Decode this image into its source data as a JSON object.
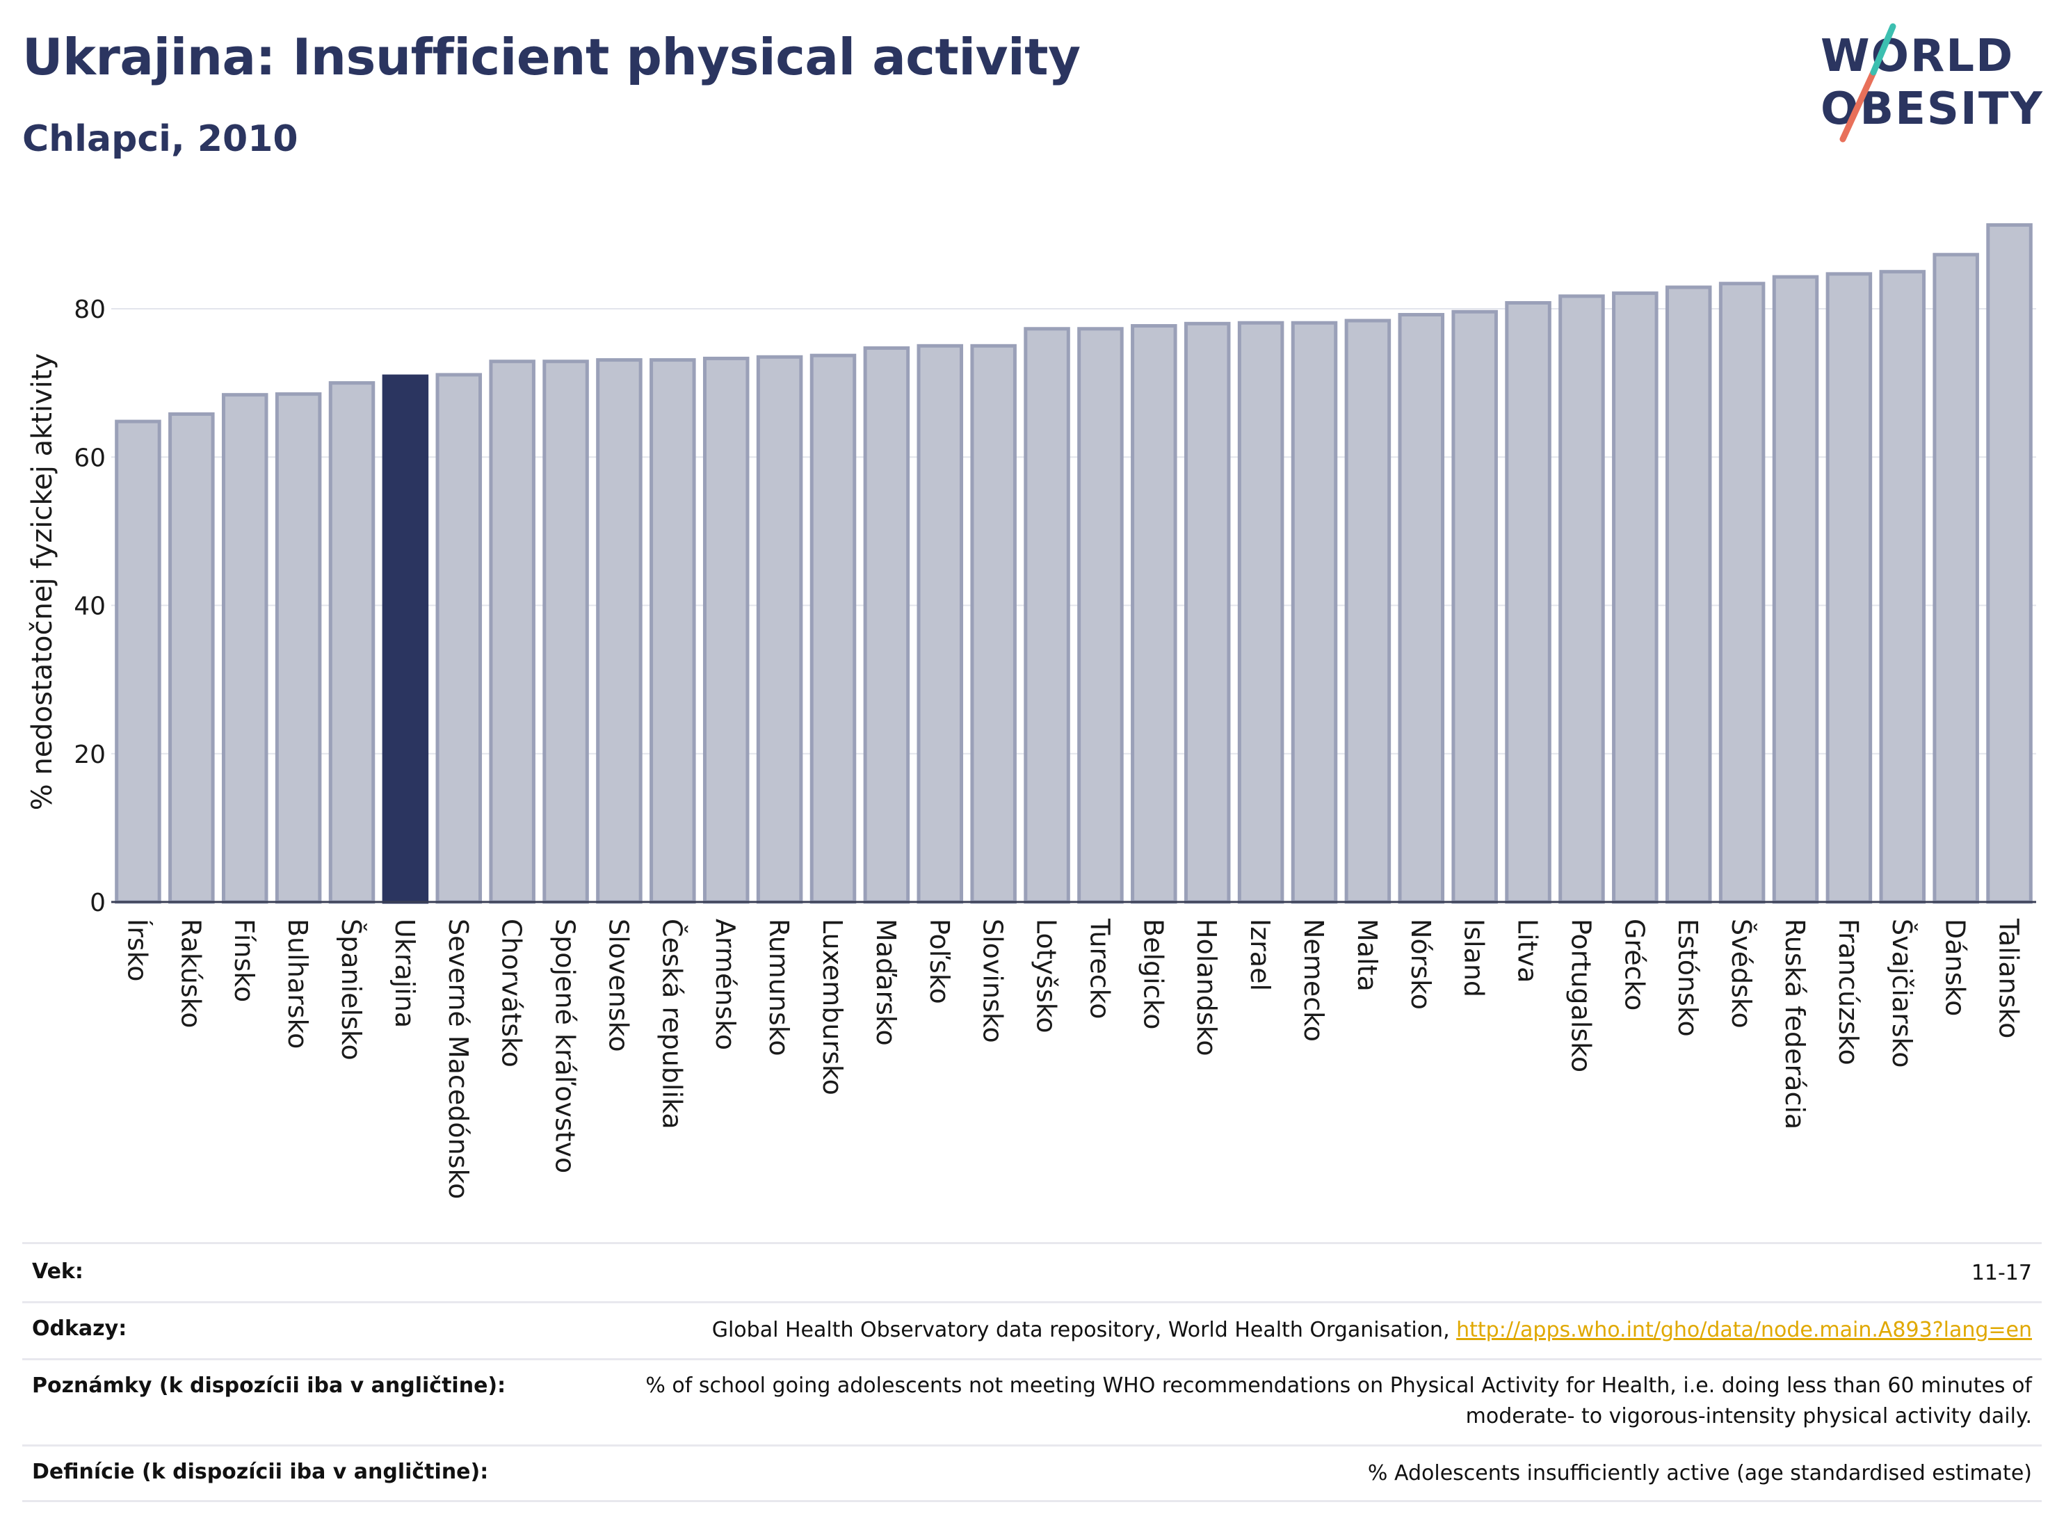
{
  "header": {
    "title": "Ukrajina: Insufficient physical activity",
    "subtitle": "Chlapci, 2010"
  },
  "logo": {
    "line1": "WORLD",
    "line2": "OBESITY"
  },
  "colors": {
    "bar": "#bfc3d0",
    "bar_edge": "#9aa0b8",
    "highlight": "#2b3560",
    "title": "#2b3560",
    "link": "#e0a800"
  },
  "chart_data": {
    "type": "bar",
    "ylabel": "% nedostatočnej fyzickej aktivity",
    "ylim": [
      0,
      92
    ],
    "yticks": [
      0,
      20,
      40,
      60,
      80
    ],
    "grid": true,
    "highlight": "Ukrajina",
    "categories": [
      "Írsko",
      "Rakúsko",
      "Fínsko",
      "Bulharsko",
      "Španielsko",
      "Ukrajina",
      "Severné Macedónsko",
      "Chorvátsko",
      "Spojené kráľovstvo",
      "Slovensko",
      "Česká republika",
      "Arménsko",
      "Rumunsko",
      "Luxembursko",
      "Maďarsko",
      "Poľsko",
      "Slovinsko",
      "Lotyšsko",
      "Turecko",
      "Belgicko",
      "Holandsko",
      "Izrael",
      "Nemecko",
      "Malta",
      "Nórsko",
      "Island",
      "Litva",
      "Portugalsko",
      "Grécko",
      "Estónsko",
      "Švédsko",
      "Ruská federácia",
      "Francúzsko",
      "Švajčiarsko",
      "Dánsko",
      "Taliansko"
    ],
    "values": [
      64.8,
      65.8,
      68.4,
      68.5,
      70.0,
      70.9,
      71.1,
      72.9,
      72.9,
      73.1,
      73.1,
      73.3,
      73.5,
      73.7,
      74.7,
      75.0,
      75.0,
      77.3,
      77.3,
      77.7,
      78.0,
      78.1,
      78.1,
      78.4,
      79.2,
      79.6,
      80.8,
      81.7,
      82.1,
      82.9,
      83.4,
      84.3,
      84.7,
      85.0,
      87.3,
      91.3
    ]
  },
  "info": {
    "rows": [
      {
        "label": "Vek:",
        "value": "11-17"
      },
      {
        "label": "Odkazy:",
        "value": "Global Health Observatory data repository, World Health Organisation, ",
        "link": "http://apps.who.int/gho/data/node.main.A893?lang=en"
      },
      {
        "label": "Poznámky (k dispozícii iba v angličtine):",
        "value": "% of school going adolescents not meeting WHO recommendations on Physical Activity for Health, i.e. doing less than 60 minutes of",
        "value2": "moderate- to vigorous-intensity physical activity daily."
      },
      {
        "label": "Definície (k dispozícii iba v angličtine):",
        "value": "% Adolescents insufficiently active (age standardised estimate)"
      }
    ]
  }
}
